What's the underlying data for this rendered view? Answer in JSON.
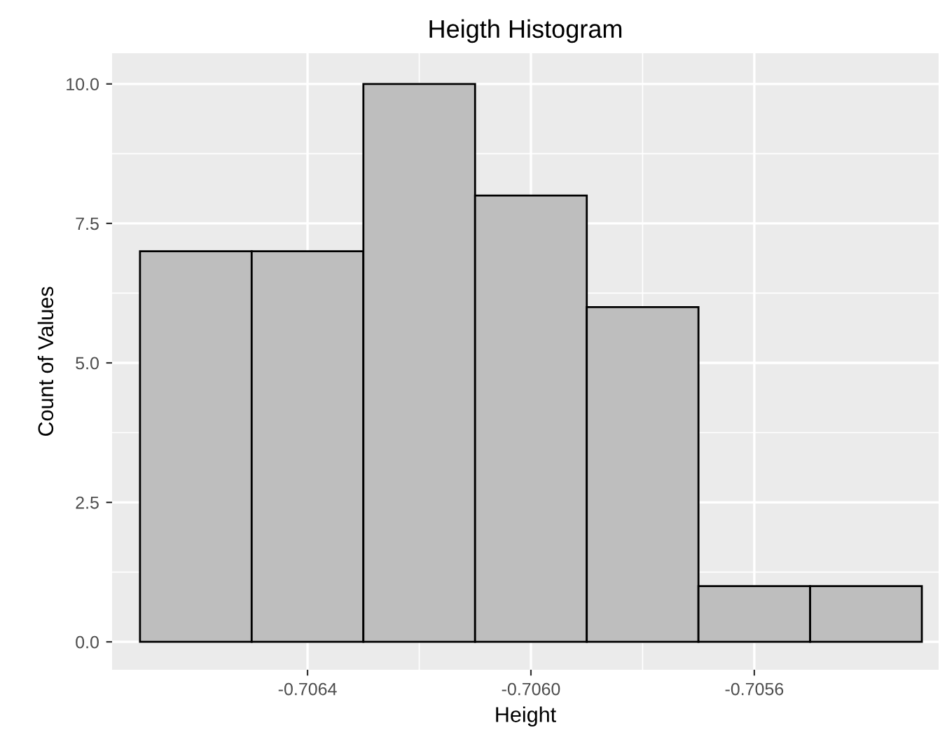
{
  "chart_data": {
    "type": "histogram",
    "title": "Heigth Histogram",
    "xlabel": "Height",
    "ylabel": "Count of Values",
    "bins": [
      -0.7067,
      -0.7065,
      -0.7063,
      -0.7061,
      -0.7059,
      -0.7057,
      -0.7055,
      -0.7053
    ],
    "values": [
      7,
      7,
      10,
      8,
      6,
      1,
      1
    ],
    "color": "#bebebe",
    "xlim": [
      -0.70675,
      -0.70527
    ],
    "ylim": [
      -0.5,
      10.55
    ],
    "xticks": [
      -0.7064,
      {
        "value": -0.706,
        "label": "-0.7060"
      },
      -0.7056
    ],
    "yticks": [
      {
        "value": 0,
        "label": "0.0"
      },
      {
        "value": 2.5,
        "label": "2.5"
      },
      {
        "value": 5,
        "label": "5.0"
      },
      {
        "value": 7.5,
        "label": "7.5"
      },
      {
        "value": 10,
        "label": "10.0"
      }
    ],
    "grid": true
  }
}
